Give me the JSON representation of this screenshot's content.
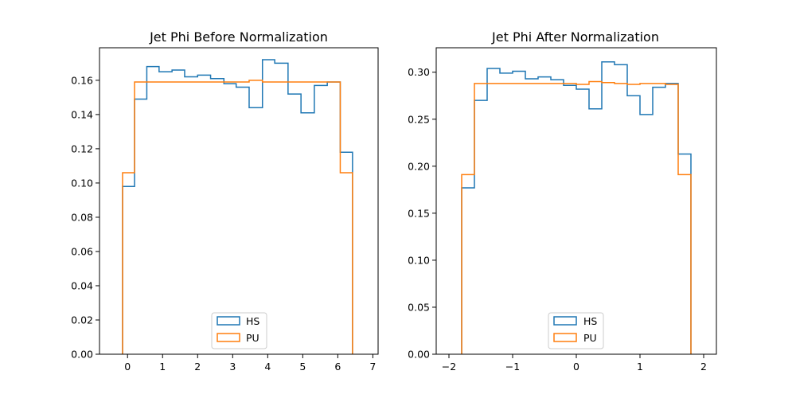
{
  "chart_data": [
    {
      "type": "histogram-step",
      "title": "Jet Phi Before Normalization",
      "xlabel": "",
      "ylabel": "",
      "xlim": [
        -0.8,
        7.15
      ],
      "ylim": [
        0,
        0.179
      ],
      "xticks": [
        0,
        1,
        2,
        3,
        4,
        5,
        6,
        7
      ],
      "xtick_labels": [
        "0",
        "1",
        "2",
        "3",
        "4",
        "5",
        "6",
        "7"
      ],
      "yticks": [
        0.0,
        0.02,
        0.04,
        0.06,
        0.08,
        0.1,
        0.12,
        0.14,
        0.16
      ],
      "ytick_labels": [
        "0.00",
        "0.02",
        "0.04",
        "0.06",
        "0.08",
        "0.10",
        "0.12",
        "0.14",
        "0.16"
      ],
      "grid": false,
      "legend_position": "lower center",
      "bin_edges": [
        -0.142,
        0.2,
        0.55,
        0.9,
        1.27,
        1.63,
        2.0,
        2.37,
        2.75,
        3.1,
        3.47,
        3.85,
        4.2,
        4.58,
        4.95,
        5.33,
        5.7,
        6.07,
        6.42
      ],
      "series": [
        {
          "name": "HS",
          "color": "#1f77b4",
          "values": [
            0.098,
            0.149,
            0.168,
            0.165,
            0.166,
            0.162,
            0.163,
            0.161,
            0.158,
            0.156,
            0.144,
            0.172,
            0.17,
            0.152,
            0.141,
            0.157,
            0.159,
            0.118
          ]
        },
        {
          "name": "PU",
          "color": "#ff7f0e",
          "values": [
            0.106,
            0.159,
            0.159,
            0.159,
            0.159,
            0.159,
            0.159,
            0.159,
            0.159,
            0.159,
            0.16,
            0.159,
            0.159,
            0.159,
            0.159,
            0.159,
            0.159,
            0.106
          ]
        }
      ]
    },
    {
      "type": "histogram-step",
      "title": "Jet Phi After Normalization",
      "xlabel": "",
      "ylabel": "",
      "xlim": [
        -2.2,
        2.2
      ],
      "ylim": [
        0,
        0.326
      ],
      "xticks": [
        -2,
        -1,
        0,
        1,
        2
      ],
      "xtick_labels": [
        "−2",
        "−1",
        "0",
        "1",
        "2"
      ],
      "yticks": [
        0.0,
        0.05,
        0.1,
        0.15,
        0.2,
        0.25,
        0.3
      ],
      "ytick_labels": [
        "0.00",
        "0.05",
        "0.10",
        "0.15",
        "0.20",
        "0.25",
        "0.30"
      ],
      "grid": false,
      "legend_position": "lower center",
      "bin_edges": [
        -1.8,
        -1.6,
        -1.4,
        -1.2,
        -1.0,
        -0.8,
        -0.6,
        -0.4,
        -0.2,
        0.0,
        0.2,
        0.4,
        0.6,
        0.8,
        1.0,
        1.2,
        1.4,
        1.6,
        1.8
      ],
      "series": [
        {
          "name": "HS",
          "color": "#1f77b4",
          "values": [
            0.177,
            0.27,
            0.304,
            0.299,
            0.301,
            0.293,
            0.295,
            0.292,
            0.286,
            0.282,
            0.261,
            0.311,
            0.308,
            0.275,
            0.255,
            0.284,
            0.288,
            0.213
          ]
        },
        {
          "name": "PU",
          "color": "#ff7f0e",
          "values": [
            0.191,
            0.288,
            0.288,
            0.288,
            0.288,
            0.288,
            0.288,
            0.288,
            0.288,
            0.287,
            0.29,
            0.289,
            0.288,
            0.287,
            0.288,
            0.288,
            0.287,
            0.191
          ]
        }
      ]
    }
  ]
}
